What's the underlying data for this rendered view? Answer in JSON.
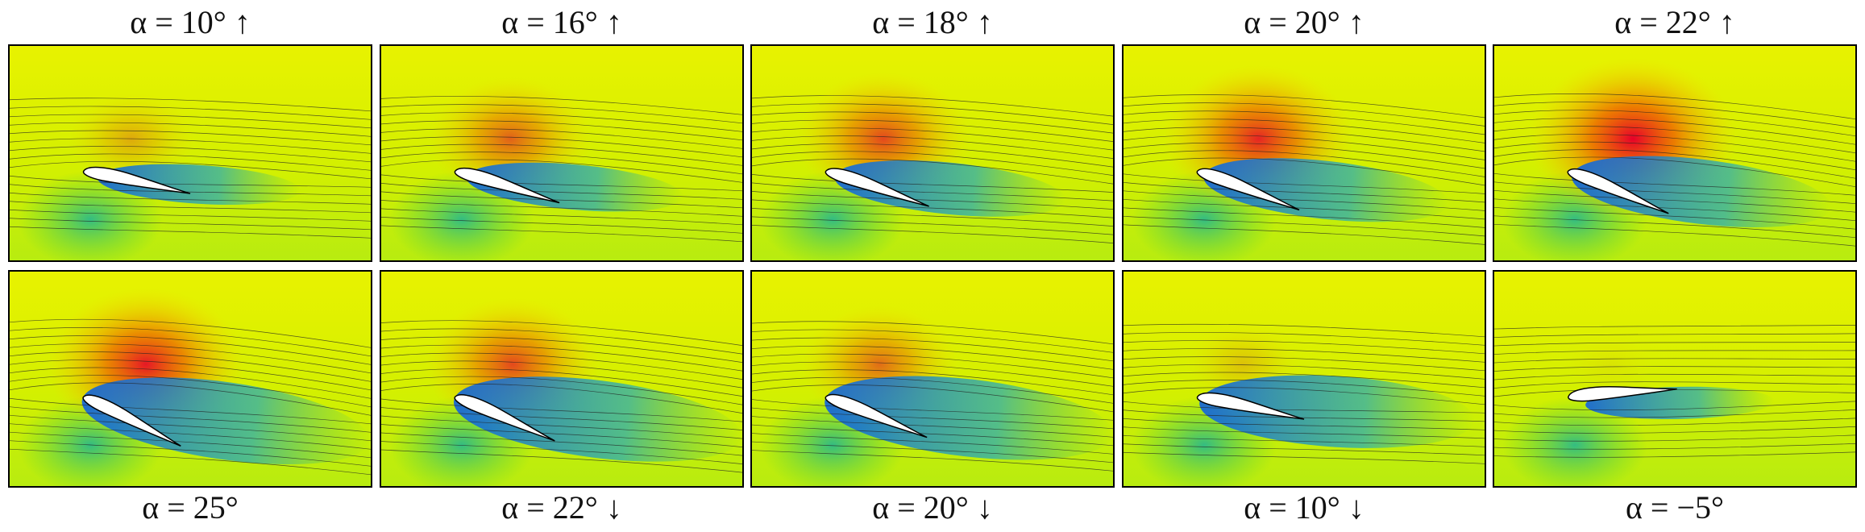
{
  "panels": [
    {
      "label": "α = 10° ↑"
    },
    {
      "label": "α = 16° ↑"
    },
    {
      "label": "α = 18° ↑"
    },
    {
      "label": "α = 20° ↑"
    },
    {
      "label": "α = 22° ↑"
    },
    {
      "label": "α = 25°"
    },
    {
      "label": "α = 22° ↓"
    },
    {
      "label": "α = 20° ↓"
    },
    {
      "label": "α = 10° ↓"
    },
    {
      "label": "α = −5°"
    }
  ]
}
